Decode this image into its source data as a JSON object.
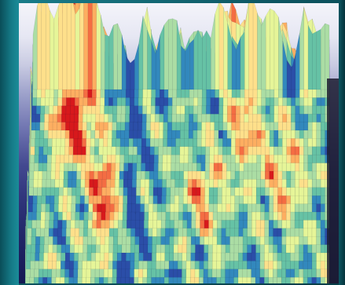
{
  "viewer": {
    "colormap": [
      "#d7191c",
      "#f46d43",
      "#fdae61",
      "#fee08b",
      "#e6f598",
      "#abdda4",
      "#66c2a5",
      "#3288bd",
      "#2b4ea8"
    ],
    "background": {
      "top": "#f4f4fa",
      "bottom": "#161b55"
    },
    "frame_color": "#0f5e6b"
  }
}
